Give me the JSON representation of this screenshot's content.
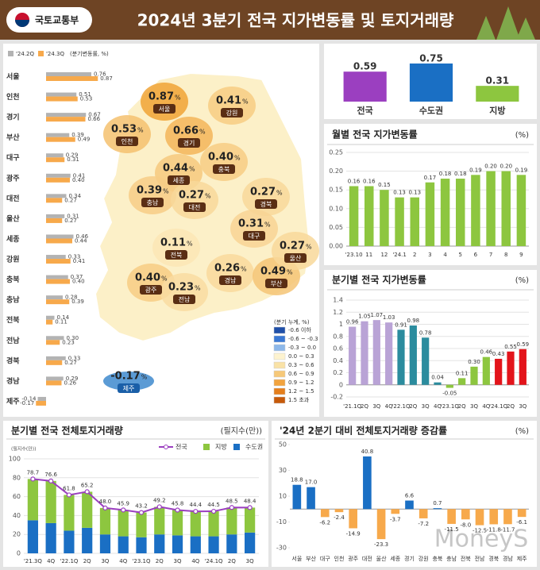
{
  "header": {
    "org": "국토교통부",
    "title": "2024년 3분기 전국 지가변동률 및 토지거래량"
  },
  "watermark": "MoneyS",
  "map": {
    "unit": "%",
    "regions": [
      "서울",
      "인천",
      "경기",
      "강원",
      "세종",
      "충북",
      "충남",
      "대전",
      "경북",
      "대구",
      "전북",
      "광주",
      "전남",
      "경남",
      "부산",
      "울산",
      "제주"
    ],
    "values": [
      0.87,
      0.53,
      0.66,
      0.41,
      0.44,
      0.4,
      0.39,
      0.27,
      0.27,
      0.31,
      0.11,
      0.4,
      0.23,
      0.26,
      0.49,
      0.27,
      -0.17
    ],
    "value_labels": [
      "0.87",
      "0.53",
      "0.66",
      "0.41",
      "0.44",
      "0.40",
      "0.39",
      "0.27",
      "0.27",
      "0.31",
      "0.11",
      "0.40",
      "0.23",
      "0.26",
      "0.49",
      "0.27",
      "-0.17"
    ],
    "legend": {
      "title": "(분기 누계, %)",
      "items": [
        {
          "label": "-0.6 이하",
          "color": "#1f4fa8"
        },
        {
          "label": "-0.6 ~ -0.3",
          "color": "#3a78d4"
        },
        {
          "label": "-0.3 ~ 0.0",
          "color": "#8db8ea"
        },
        {
          "label": "0.0 ~ 0.3",
          "color": "#fdf3cf"
        },
        {
          "label": "0.3 ~ 0.6",
          "color": "#f9e2a6"
        },
        {
          "label": "0.6 ~ 0.9",
          "color": "#f6c878"
        },
        {
          "label": "0.9 ~ 1.2",
          "color": "#f2a33e"
        },
        {
          "label": "1.2 ~ 1.5",
          "color": "#e57f1c"
        },
        {
          "label": "1.5 초과",
          "color": "#c65a0a"
        }
      ]
    }
  },
  "chart_data": [
    {
      "type": "hbar",
      "note": "(분기변동률, %)",
      "categories": [
        "서울",
        "인천",
        "경기",
        "부산",
        "대구",
        "광주",
        "대전",
        "울산",
        "세종",
        "강원",
        "충북",
        "충남",
        "전북",
        "전남",
        "경북",
        "경남",
        "제주"
      ],
      "series": [
        {
          "name": "'24.2Q",
          "color": "#b3b3b3",
          "values": [
            0.76,
            0.51,
            0.67,
            0.39,
            0.29,
            0.41,
            0.34,
            0.31,
            0.46,
            0.33,
            0.37,
            0.28,
            0.14,
            0.3,
            0.33,
            0.29,
            -0.14
          ],
          "value_labels": [
            "0.76",
            "0.51",
            "0.67",
            "0.39",
            "0.29",
            "0.41",
            "0.34",
            "0.31",
            "0.46",
            "0.33",
            "0.37",
            "0.28",
            "0.14",
            "0.30",
            "0.33",
            "0.29",
            "-0.14"
          ]
        },
        {
          "name": "'24.3Q",
          "color": "#f7a94b",
          "values": [
            0.87,
            0.53,
            0.66,
            0.49,
            0.31,
            0.4,
            0.27,
            0.27,
            0.44,
            0.41,
            0.4,
            0.39,
            0.11,
            0.23,
            0.27,
            0.26,
            -0.17
          ],
          "value_labels": [
            "0.87",
            "0.53",
            "0.66",
            "0.49",
            "0.31",
            "0.40",
            "0.27",
            "0.27",
            "0.44",
            "0.41",
            "0.40",
            "0.39",
            "0.11",
            "0.23",
            "0.27",
            "0.26",
            "-0.17"
          ]
        }
      ]
    },
    {
      "type": "bar",
      "categories": [
        "전국",
        "수도권",
        "지방"
      ],
      "values": [
        0.59,
        0.75,
        0.31
      ],
      "value_labels": [
        "0.59",
        "0.75",
        "0.31"
      ],
      "colors": [
        "#9b3fc0",
        "#1a6fc4",
        "#8dc63f"
      ]
    },
    {
      "type": "bar",
      "title": "월별 전국 지가변동률",
      "unit": "(%)",
      "categories": [
        "'23.10",
        "11",
        "12",
        "'24.1",
        "2",
        "3",
        "4",
        "5",
        "6",
        "7",
        "8",
        "9"
      ],
      "values": [
        0.16,
        0.16,
        0.15,
        0.13,
        0.13,
        0.17,
        0.18,
        0.18,
        0.19,
        0.2,
        0.2,
        0.19
      ],
      "value_labels": [
        "0.16",
        "0.16",
        "0.15",
        "0.13",
        "0.13",
        "0.17",
        "0.18",
        "0.18",
        "0.19",
        "0.20",
        "0.20",
        "0.19"
      ],
      "color": "#8dc63f",
      "ylim": [
        0,
        0.25
      ],
      "yticks": [
        {
          "value": 0,
          "label": "0.00"
        },
        0.05,
        {
          "value": 0.1,
          "label": "0.10"
        },
        0.15,
        {
          "value": 0.2,
          "label": "0.20"
        },
        0.25
      ],
      "grid": true
    },
    {
      "type": "bar",
      "title": "분기별 전국 지가변동률",
      "unit": "(%)",
      "categories": [
        "'21.1Q",
        "2Q",
        "3Q",
        "4Q",
        "'22.1Q",
        "2Q",
        "3Q",
        "4Q",
        "'23.1Q",
        "2Q",
        "3Q",
        "4Q",
        "'24.1Q",
        "2Q",
        "3Q"
      ],
      "values": [
        0.96,
        1.05,
        1.07,
        1.03,
        0.91,
        0.98,
        0.78,
        0.04,
        -0.05,
        0.11,
        0.3,
        0.46,
        0.43,
        0.55,
        0.59
      ],
      "value_labels": [
        "0.96",
        "1.05",
        "1.07",
        "1.03",
        "0.91",
        "0.98",
        "0.78",
        "0.04",
        "-0.05",
        "0.11",
        "0.30",
        "0.46",
        "0.43",
        "0.55",
        "0.59"
      ],
      "colors": [
        "#b9a3d6",
        "#b9a3d6",
        "#b9a3d6",
        "#b9a3d6",
        "#2b8c9e",
        "#2b8c9e",
        "#2b8c9e",
        "#2b8c9e",
        "#8dc63f",
        "#8dc63f",
        "#8dc63f",
        "#8dc63f",
        "#e3141b",
        "#e3141b",
        "#e3141b"
      ],
      "ylim": [
        -0.2,
        1.4
      ],
      "yticks": [
        -0.2,
        0,
        0.2,
        0.4,
        0.6,
        0.8,
        1,
        1.2,
        1.4
      ],
      "grid": true
    },
    {
      "type": "combo",
      "title": "분기별 전국 전체토지거래량",
      "unit": "(필지수(만))",
      "axis_label": "(필지수(만))",
      "categories": [
        "'21.3Q",
        "4Q",
        "'22.1Q",
        "2Q",
        "3Q",
        "4Q",
        "'23.1Q",
        "2Q",
        "3Q",
        "4Q",
        "'24.1Q",
        "2Q",
        "3Q"
      ],
      "series": [
        {
          "name": "전국",
          "type": "line",
          "color": "#9b3fc0",
          "values": [
            78.7,
            76.6,
            61.8,
            65.2,
            48.0,
            45.9,
            43.2,
            49.2,
            45.8,
            44.4,
            44.5,
            48.5,
            48.4
          ],
          "value_labels": [
            "78.7",
            "76.6",
            "61.8",
            "65.2",
            "48.0",
            "45.9",
            "43.2",
            "49.2",
            "45.8",
            "44.4",
            "44.5",
            "48.5",
            "48.4"
          ]
        },
        {
          "name": "지방",
          "type": "bar",
          "color": "#8dc63f",
          "values": [
            43.7,
            44.6,
            37.8,
            38.2,
            28,
            27.9,
            26.2,
            29.2,
            26.8,
            26.4,
            26.5,
            28.5,
            26.4
          ]
        },
        {
          "name": "수도권",
          "type": "bar",
          "color": "#1a6fc4",
          "values": [
            35,
            32,
            24,
            27,
            20,
            18,
            17,
            20,
            19,
            18,
            18,
            20,
            22
          ]
        }
      ],
      "ylim": [
        0,
        100
      ],
      "yticks": [
        0,
        20,
        40,
        60,
        80,
        100
      ],
      "grid": true
    },
    {
      "type": "bar",
      "title": "'24년 2분기 대비 전체토지거래량 증감률",
      "unit": "(%)",
      "categories": [
        "서울",
        "부산",
        "대구",
        "인천",
        "광주",
        "대전",
        "울산",
        "세종",
        "경기",
        "강원",
        "충북",
        "충남",
        "전북",
        "전남",
        "경북",
        "경남",
        "제주"
      ],
      "values": [
        18.8,
        17.0,
        -6.2,
        -2.4,
        -14.9,
        40.8,
        -23.3,
        -3.7,
        6.6,
        -7.2,
        0.7,
        -11.5,
        -8.0,
        -12.5,
        -11.8,
        -11.7,
        -6.1
      ],
      "value_labels": [
        "18.8",
        "17.0",
        "-6.2",
        "-2.4",
        "-14.9",
        "40.8",
        "-23.3",
        "-3.7",
        "6.6",
        "-7.2",
        "0.7",
        "-11.5",
        "-8.0",
        "-12.5",
        "-11.8",
        "-11.7",
        "-6.1"
      ],
      "positive_color": "#1a6fc4",
      "negative_color": "#f7a94b",
      "ylim": [
        -30,
        50
      ],
      "yticks": [
        -30,
        -10,
        10,
        30,
        50
      ],
      "grid": false
    }
  ]
}
